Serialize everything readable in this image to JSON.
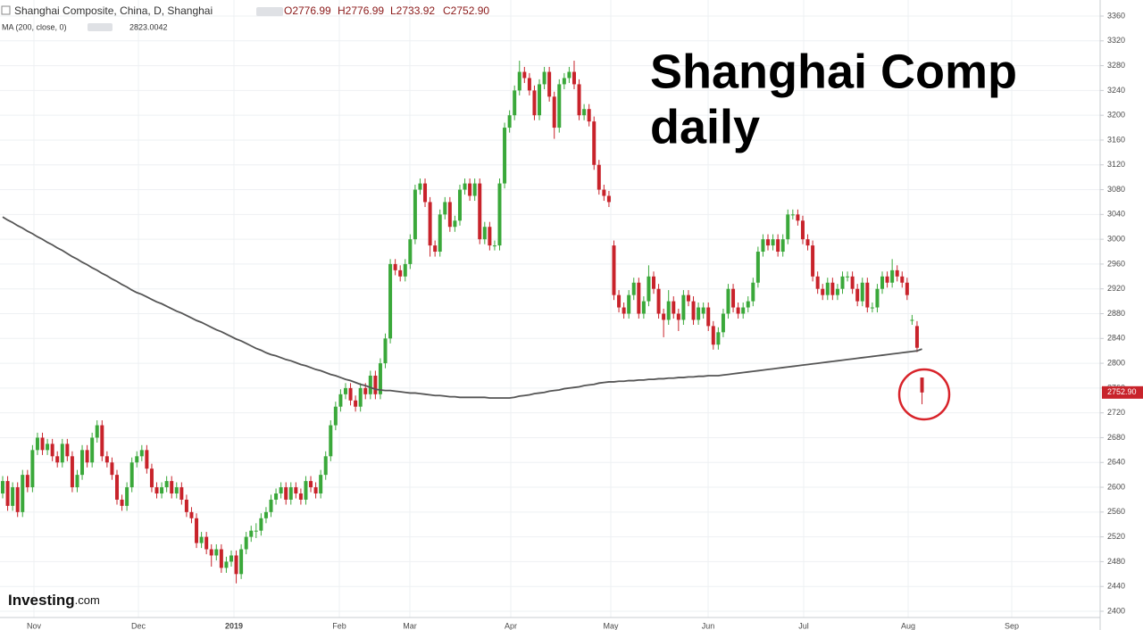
{
  "chart_data": {
    "type": "candlestick",
    "symbol": "Shanghai Composite, China, D, Shanghai",
    "ohlc_legend": [
      "O2776.99",
      "H2776.99",
      "L2733.92",
      "C2752.90"
    ],
    "ma_name": "MA (200, close, 0)",
    "title_lines": [
      "Shanghai Comp",
      "daily"
    ],
    "watermark": [
      "Investing",
      ".com"
    ],
    "last_price_label": "2752.90",
    "xlabels": [
      "Nov",
      "Dec",
      "2019",
      "Feb",
      "Mar",
      "Apr",
      "May",
      "Jun",
      "Jul",
      "Aug",
      "Sep"
    ],
    "ylim": [
      2400,
      3360
    ],
    "yticks": [
      2400,
      2440,
      2480,
      2520,
      2560,
      2600,
      2640,
      2680,
      2720,
      2760,
      2800,
      2840,
      2880,
      2920,
      2960,
      3000,
      3040,
      3080,
      3120,
      3160,
      3200,
      3240,
      3280,
      3320,
      3360
    ],
    "up_color": "#3aa83a",
    "down_color": "#c8232b",
    "ma_color": "#555555",
    "grid": true,
    "ohlc": [
      [
        2590,
        2618,
        2582,
        2610
      ],
      [
        2610,
        2618,
        2562,
        2570
      ],
      [
        2570,
        2608,
        2562,
        2600
      ],
      [
        2600,
        2608,
        2552,
        2560
      ],
      [
        2560,
        2628,
        2552,
        2620
      ],
      [
        2620,
        2628,
        2592,
        2600
      ],
      [
        2600,
        2668,
        2592,
        2660
      ],
      [
        2660,
        2688,
        2652,
        2680
      ],
      [
        2680,
        2688,
        2652,
        2660
      ],
      [
        2660,
        2678,
        2652,
        2670
      ],
      [
        2670,
        2678,
        2642,
        2650
      ],
      [
        2650,
        2658,
        2632,
        2640
      ],
      [
        2640,
        2678,
        2632,
        2670
      ],
      [
        2670,
        2678,
        2642,
        2650
      ],
      [
        2650,
        2658,
        2592,
        2600
      ],
      [
        2600,
        2628,
        2592,
        2620
      ],
      [
        2620,
        2668,
        2612,
        2660
      ],
      [
        2660,
        2668,
        2632,
        2640
      ],
      [
        2640,
        2688,
        2632,
        2680
      ],
      [
        2680,
        2708,
        2672,
        2700
      ],
      [
        2700,
        2708,
        2642,
        2650
      ],
      [
        2650,
        2658,
        2632,
        2640
      ],
      [
        2640,
        2648,
        2612,
        2620
      ],
      [
        2620,
        2628,
        2572,
        2580
      ],
      [
        2580,
        2588,
        2562,
        2570
      ],
      [
        2570,
        2608,
        2562,
        2600
      ],
      [
        2600,
        2648,
        2592,
        2640
      ],
      [
        2640,
        2658,
        2632,
        2650
      ],
      [
        2650,
        2668,
        2642,
        2660
      ],
      [
        2660,
        2668,
        2622,
        2630
      ],
      [
        2630,
        2638,
        2592,
        2600
      ],
      [
        2600,
        2608,
        2582,
        2590
      ],
      [
        2590,
        2608,
        2582,
        2600
      ],
      [
        2600,
        2618,
        2592,
        2610
      ],
      [
        2610,
        2618,
        2582,
        2590
      ],
      [
        2590,
        2608,
        2582,
        2600
      ],
      [
        2600,
        2608,
        2572,
        2580
      ],
      [
        2580,
        2588,
        2552,
        2560
      ],
      [
        2560,
        2568,
        2542,
        2550
      ],
      [
        2550,
        2558,
        2502,
        2510
      ],
      [
        2510,
        2528,
        2502,
        2520
      ],
      [
        2520,
        2528,
        2492,
        2500
      ],
      [
        2500,
        2508,
        2472,
        2490
      ],
      [
        2490,
        2508,
        2482,
        2500
      ],
      [
        2500,
        2508,
        2462,
        2470
      ],
      [
        2470,
        2488,
        2462,
        2480
      ],
      [
        2480,
        2498,
        2472,
        2490
      ],
      [
        2490,
        2498,
        2445,
        2460
      ],
      [
        2460,
        2508,
        2452,
        2500
      ],
      [
        2500,
        2528,
        2492,
        2520
      ],
      [
        2520,
        2538,
        2512,
        2530
      ],
      [
        2530,
        2542,
        2518,
        2530
      ],
      [
        2530,
        2558,
        2522,
        2550
      ],
      [
        2550,
        2568,
        2542,
        2560
      ],
      [
        2560,
        2588,
        2552,
        2580
      ],
      [
        2580,
        2598,
        2572,
        2590
      ],
      [
        2590,
        2608,
        2582,
        2600
      ],
      [
        2600,
        2608,
        2572,
        2580
      ],
      [
        2580,
        2608,
        2572,
        2600
      ],
      [
        2600,
        2608,
        2582,
        2590
      ],
      [
        2590,
        2598,
        2572,
        2580
      ],
      [
        2580,
        2618,
        2572,
        2610
      ],
      [
        2610,
        2618,
        2592,
        2600
      ],
      [
        2600,
        2608,
        2582,
        2590
      ],
      [
        2590,
        2628,
        2582,
        2620
      ],
      [
        2620,
        2658,
        2612,
        2650
      ],
      [
        2650,
        2708,
        2642,
        2700
      ],
      [
        2700,
        2738,
        2692,
        2730
      ],
      [
        2730,
        2758,
        2722,
        2750
      ],
      [
        2750,
        2768,
        2742,
        2760
      ],
      [
        2760,
        2768,
        2732,
        2740
      ],
      [
        2740,
        2748,
        2722,
        2730
      ],
      [
        2730,
        2768,
        2722,
        2760
      ],
      [
        2760,
        2768,
        2742,
        2750
      ],
      [
        2750,
        2788,
        2742,
        2780
      ],
      [
        2780,
        2788,
        2742,
        2750
      ],
      [
        2750,
        2808,
        2742,
        2800
      ],
      [
        2800,
        2848,
        2792,
        2840
      ],
      [
        2840,
        2968,
        2832,
        2960
      ],
      [
        2960,
        2968,
        2942,
        2950
      ],
      [
        2950,
        2958,
        2932,
        2940
      ],
      [
        2940,
        2968,
        2932,
        2960
      ],
      [
        2960,
        3008,
        2952,
        3000
      ],
      [
        3000,
        3088,
        2992,
        3080
      ],
      [
        3080,
        3098,
        3072,
        3090
      ],
      [
        3090,
        3098,
        3052,
        3060
      ],
      [
        3060,
        3068,
        2972,
        2990
      ],
      [
        2990,
        2998,
        2972,
        2980
      ],
      [
        2980,
        3048,
        2972,
        3040
      ],
      [
        3040,
        3068,
        3032,
        3060
      ],
      [
        3060,
        3068,
        3012,
        3020
      ],
      [
        3020,
        3038,
        3012,
        3030
      ],
      [
        3030,
        3088,
        3022,
        3080
      ],
      [
        3080,
        3098,
        3072,
        3090
      ],
      [
        3090,
        3098,
        3062,
        3070
      ],
      [
        3070,
        3098,
        3062,
        3090
      ],
      [
        3090,
        3098,
        2992,
        3000
      ],
      [
        3000,
        3028,
        2992,
        3020
      ],
      [
        3020,
        3028,
        2982,
        2990
      ],
      [
        2990,
        2998,
        2982,
        2990
      ],
      [
        2990,
        3098,
        2982,
        3090
      ],
      [
        3090,
        3188,
        3082,
        3180
      ],
      [
        3180,
        3208,
        3172,
        3200
      ],
      [
        3200,
        3248,
        3192,
        3240
      ],
      [
        3240,
        3288,
        3232,
        3270
      ],
      [
        3270,
        3278,
        3252,
        3260
      ],
      [
        3260,
        3268,
        3232,
        3240
      ],
      [
        3240,
        3248,
        3192,
        3200
      ],
      [
        3200,
        3258,
        3192,
        3250
      ],
      [
        3250,
        3278,
        3242,
        3270
      ],
      [
        3270,
        3278,
        3222,
        3230
      ],
      [
        3230,
        3238,
        3162,
        3180
      ],
      [
        3180,
        3258,
        3172,
        3250
      ],
      [
        3250,
        3268,
        3242,
        3260
      ],
      [
        3260,
        3278,
        3252,
        3270
      ],
      [
        3270,
        3288,
        3242,
        3250
      ],
      [
        3250,
        3258,
        3192,
        3200
      ],
      [
        3200,
        3218,
        3192,
        3210
      ],
      [
        3210,
        3218,
        3182,
        3190
      ],
      [
        3190,
        3198,
        3112,
        3120
      ],
      [
        3120,
        3128,
        3072,
        3080
      ],
      [
        3080,
        3088,
        3062,
        3070
      ],
      [
        3070,
        3078,
        3052,
        3060
      ],
      [
        2990,
        2998,
        2902,
        2910
      ],
      [
        2910,
        2918,
        2882,
        2890
      ],
      [
        2890,
        2898,
        2872,
        2880
      ],
      [
        2880,
        2918,
        2872,
        2910
      ],
      [
        2910,
        2938,
        2902,
        2930
      ],
      [
        2930,
        2938,
        2872,
        2880
      ],
      [
        2880,
        2908,
        2872,
        2900
      ],
      [
        2900,
        2958,
        2892,
        2940
      ],
      [
        2940,
        2948,
        2912,
        2920
      ],
      [
        2920,
        2928,
        2872,
        2880
      ],
      [
        2880,
        2888,
        2842,
        2870
      ],
      [
        2870,
        2918,
        2862,
        2900
      ],
      [
        2900,
        2908,
        2872,
        2880
      ],
      [
        2880,
        2888,
        2852,
        2870
      ],
      [
        2870,
        2918,
        2862,
        2910
      ],
      [
        2910,
        2918,
        2892,
        2900
      ],
      [
        2900,
        2908,
        2862,
        2870
      ],
      [
        2870,
        2898,
        2862,
        2890
      ],
      [
        2880,
        2898,
        2872,
        2890
      ],
      [
        2890,
        2898,
        2852,
        2860
      ],
      [
        2860,
        2868,
        2822,
        2830
      ],
      [
        2830,
        2858,
        2822,
        2850
      ],
      [
        2850,
        2888,
        2842,
        2880
      ],
      [
        2880,
        2928,
        2872,
        2920
      ],
      [
        2920,
        2928,
        2882,
        2890
      ],
      [
        2890,
        2898,
        2872,
        2880
      ],
      [
        2880,
        2898,
        2872,
        2890
      ],
      [
        2890,
        2908,
        2882,
        2900
      ],
      [
        2900,
        2938,
        2892,
        2930
      ],
      [
        2930,
        2988,
        2922,
        2980
      ],
      [
        2980,
        3008,
        2972,
        3000
      ],
      [
        3000,
        3008,
        2982,
        2990
      ],
      [
        2990,
        3008,
        2982,
        3000
      ],
      [
        3000,
        3008,
        2972,
        2980
      ],
      [
        2980,
        3008,
        2972,
        3000
      ],
      [
        3000,
        3048,
        2992,
        3040
      ],
      [
        3040,
        3048,
        3032,
        3040
      ],
      [
        3040,
        3048,
        3022,
        3030
      ],
      [
        3030,
        3038,
        2992,
        3000
      ],
      [
        3000,
        3008,
        2982,
        2990
      ],
      [
        2990,
        2998,
        2932,
        2940
      ],
      [
        2940,
        2948,
        2912,
        2920
      ],
      [
        2920,
        2928,
        2902,
        2910
      ],
      [
        2910,
        2938,
        2902,
        2930
      ],
      [
        2930,
        2938,
        2902,
        2910
      ],
      [
        2910,
        2928,
        2902,
        2920
      ],
      [
        2920,
        2948,
        2912,
        2940
      ],
      [
        2940,
        2948,
        2932,
        2940
      ],
      [
        2940,
        2948,
        2912,
        2920
      ],
      [
        2920,
        2928,
        2892,
        2900
      ],
      [
        2900,
        2938,
        2892,
        2930
      ],
      [
        2930,
        2938,
        2882,
        2890
      ],
      [
        2890,
        2898,
        2882,
        2890
      ],
      [
        2890,
        2928,
        2882,
        2920
      ],
      [
        2920,
        2948,
        2912,
        2940
      ],
      [
        2940,
        2948,
        2922,
        2930
      ],
      [
        2930,
        2968,
        2922,
        2950
      ],
      [
        2950,
        2958,
        2932,
        2940
      ],
      [
        2940,
        2948,
        2922,
        2930
      ],
      [
        2930,
        2938,
        2902,
        2910
      ],
      [
        2870,
        2878,
        2862,
        2870
      ],
      [
        2860,
        2868,
        2818,
        2825
      ],
      [
        2776.99,
        2776.99,
        2733.92,
        2752.9
      ]
    ],
    "ma": [
      3036,
      3031,
      3027,
      3022,
      3018,
      3013,
      3009,
      3004,
      3000,
      2995,
      2991,
      2986,
      2982,
      2977,
      2972,
      2968,
      2963,
      2959,
      2954,
      2950,
      2945,
      2941,
      2936,
      2932,
      2927,
      2923,
      2918,
      2914,
      2911,
      2907,
      2903,
      2899,
      2896,
      2892,
      2888,
      2884,
      2881,
      2877,
      2873,
      2869,
      2866,
      2862,
      2858,
      2854,
      2851,
      2847,
      2843,
      2839,
      2836,
      2832,
      2828,
      2824,
      2821,
      2817,
      2814,
      2812,
      2809,
      2806,
      2804,
      2801,
      2798,
      2796,
      2793,
      2790,
      2788,
      2785,
      2782,
      2780,
      2777,
      2774,
      2772,
      2769,
      2766,
      2764,
      2761,
      2758,
      2757,
      2756,
      2756,
      2755,
      2754,
      2753,
      2752,
      2752,
      2751,
      2750,
      2749,
      2748,
      2748,
      2747,
      2746,
      2746,
      2745,
      2745,
      2745,
      2745,
      2745,
      2745,
      2744,
      2744,
      2744,
      2744,
      2744,
      2745,
      2747,
      2748,
      2749,
      2751,
      2752,
      2753,
      2755,
      2756,
      2757,
      2759,
      2760,
      2761,
      2762,
      2764,
      2765,
      2766,
      2768,
      2769,
      2770,
      2770,
      2771,
      2771,
      2772,
      2772,
      2773,
      2773,
      2774,
      2774,
      2775,
      2775,
      2776,
      2776,
      2777,
      2777,
      2778,
      2778,
      2779,
      2779,
      2780,
      2780,
      2780,
      2781,
      2782,
      2783,
      2784,
      2785,
      2786,
      2787,
      2788,
      2789,
      2790,
      2791,
      2792,
      2793,
      2794,
      2795,
      2796,
      2797,
      2798,
      2799,
      2800,
      2801,
      2802,
      2803,
      2804,
      2805,
      2806,
      2807,
      2808,
      2809,
      2810,
      2811,
      2812,
      2813,
      2814,
      2815,
      2816,
      2817,
      2818,
      2819,
      2820,
      2823.0042
    ]
  }
}
